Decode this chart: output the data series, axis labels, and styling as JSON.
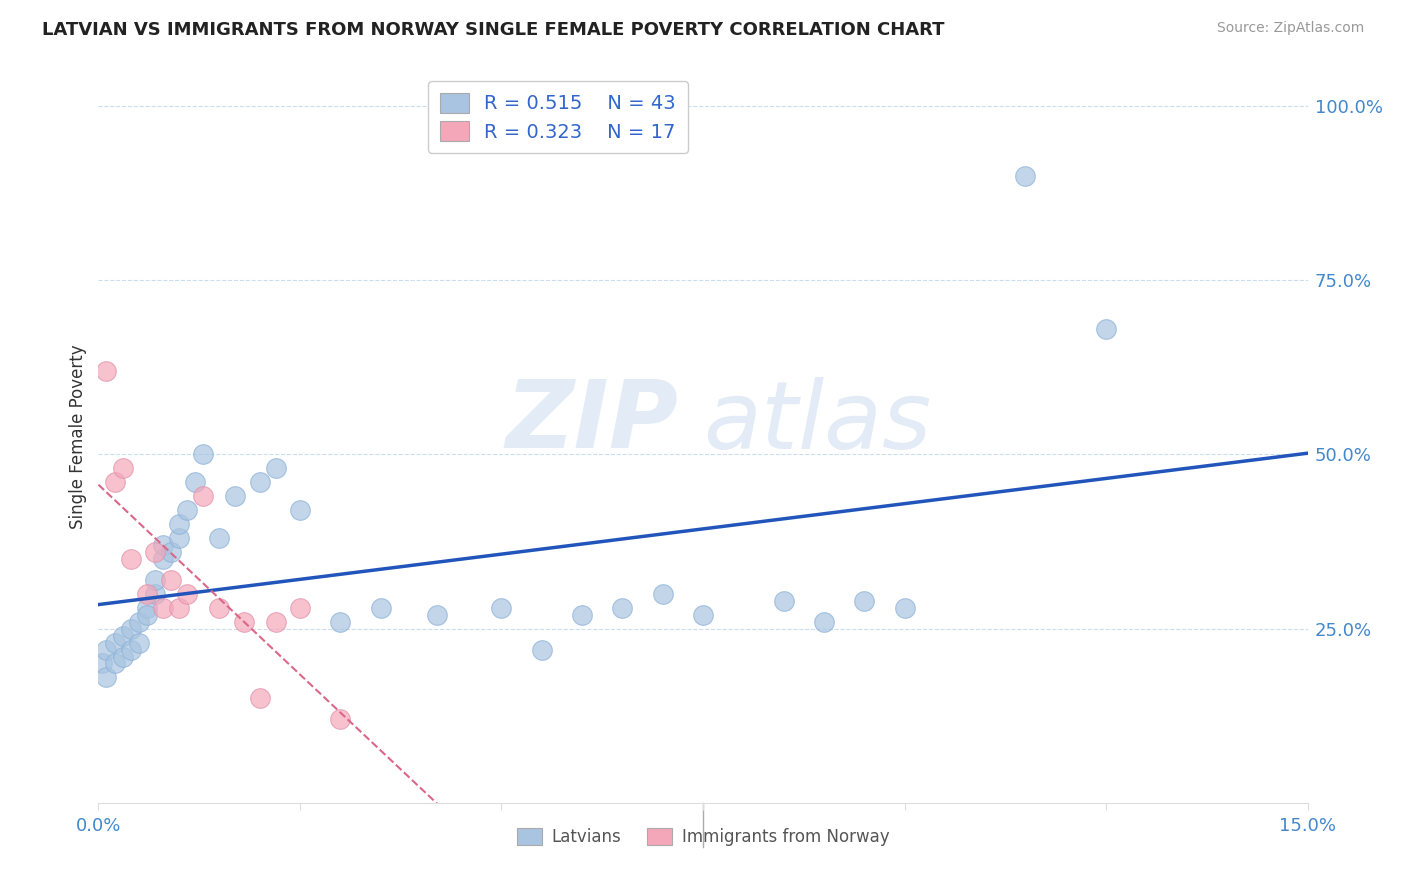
{
  "title": "LATVIAN VS IMMIGRANTS FROM NORWAY SINGLE FEMALE POVERTY CORRELATION CHART",
  "source": "Source: ZipAtlas.com",
  "ylabel": "Single Female Poverty",
  "xlim": [
    0.0,
    0.15
  ],
  "ylim": [
    0.0,
    1.05
  ],
  "ytick_labels_right": [
    "100.0%",
    "75.0%",
    "50.0%",
    "25.0%"
  ],
  "ytick_vals_right": [
    1.0,
    0.75,
    0.5,
    0.25
  ],
  "latvian_R": 0.515,
  "latvian_N": 43,
  "norway_R": 0.323,
  "norway_N": 17,
  "latvian_color": "#a8c4e0",
  "norway_color": "#f4a7b9",
  "latvian_line_color": "#2255bb",
  "norway_line_color": "#dd6688",
  "latvian_x": [
    0.0005,
    0.001,
    0.001,
    0.002,
    0.002,
    0.003,
    0.003,
    0.004,
    0.004,
    0.005,
    0.005,
    0.006,
    0.006,
    0.007,
    0.007,
    0.008,
    0.008,
    0.009,
    0.01,
    0.01,
    0.011,
    0.012,
    0.013,
    0.015,
    0.017,
    0.02,
    0.022,
    0.025,
    0.03,
    0.035,
    0.042,
    0.05,
    0.055,
    0.06,
    0.065,
    0.07,
    0.075,
    0.085,
    0.09,
    0.095,
    0.1,
    0.115,
    0.125
  ],
  "latvian_y": [
    0.2,
    0.18,
    0.22,
    0.2,
    0.23,
    0.21,
    0.24,
    0.22,
    0.25,
    0.23,
    0.26,
    0.28,
    0.27,
    0.3,
    0.32,
    0.35,
    0.37,
    0.36,
    0.38,
    0.4,
    0.42,
    0.46,
    0.5,
    0.38,
    0.44,
    0.46,
    0.48,
    0.42,
    0.26,
    0.28,
    0.27,
    0.28,
    0.22,
    0.27,
    0.28,
    0.3,
    0.27,
    0.29,
    0.26,
    0.29,
    0.28,
    0.9,
    0.68
  ],
  "norway_x": [
    0.001,
    0.002,
    0.003,
    0.004,
    0.006,
    0.007,
    0.008,
    0.009,
    0.01,
    0.011,
    0.013,
    0.015,
    0.018,
    0.02,
    0.022,
    0.025,
    0.03
  ],
  "norway_y": [
    0.62,
    0.46,
    0.48,
    0.35,
    0.3,
    0.36,
    0.28,
    0.32,
    0.28,
    0.3,
    0.44,
    0.28,
    0.26,
    0.15,
    0.26,
    0.28,
    0.12
  ]
}
